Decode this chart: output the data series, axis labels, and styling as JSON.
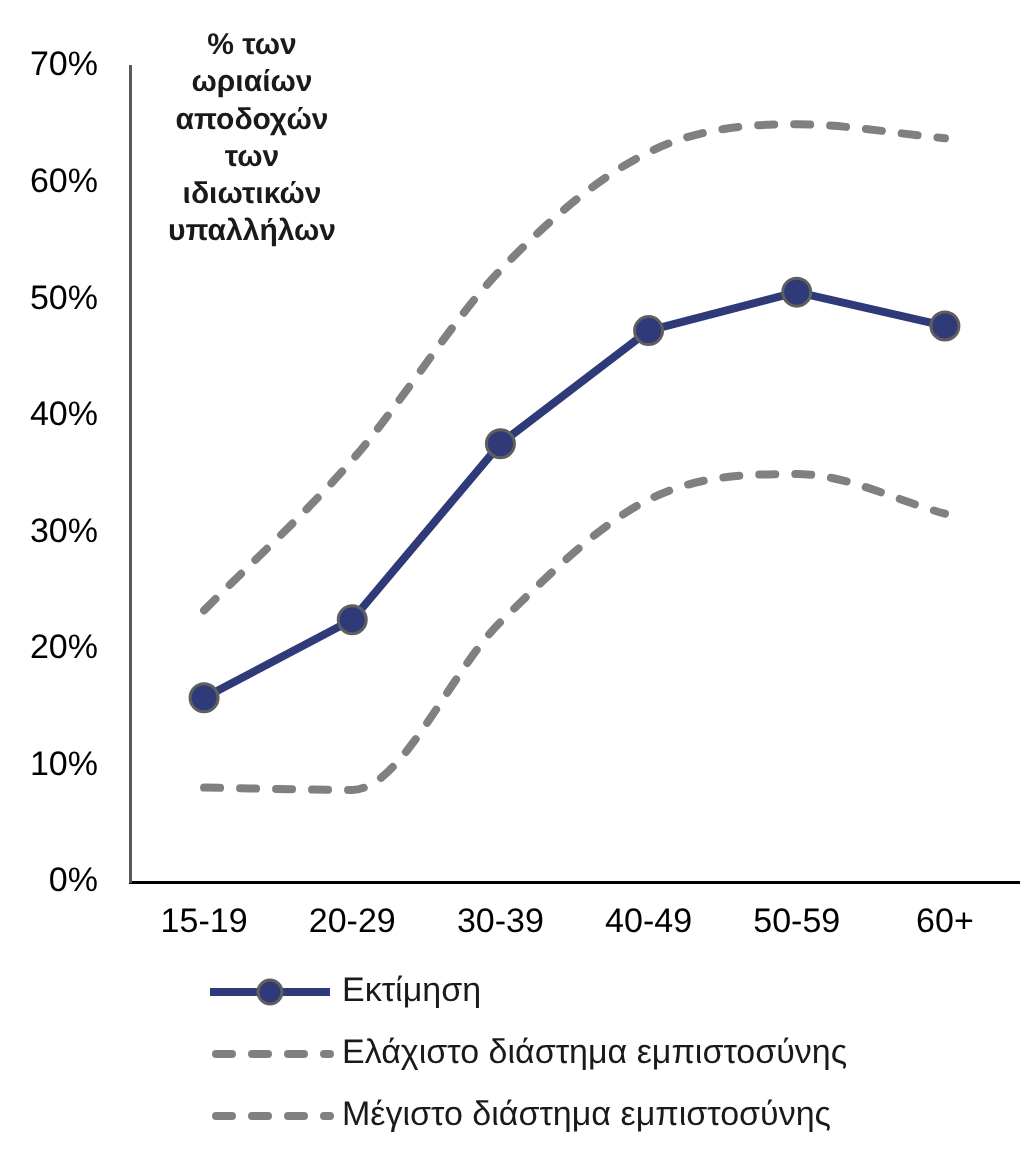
{
  "chart_data": {
    "type": "line",
    "ylabel": "% των ωριαίων αποδοχών των ιδιωτικών υπαλλήλων",
    "categories": [
      "15-19",
      "20-29",
      "30-39",
      "40-49",
      "50-59",
      "60+"
    ],
    "series": [
      {
        "name": "Εκτίμηση",
        "color": "#2f3a78",
        "values": [
          15.8,
          22.5,
          37.6,
          47.3,
          50.6,
          47.7
        ],
        "marker": "circle",
        "line_style": "solid"
      },
      {
        "name": "Ελάχιστο διάστημα εμπιστοσύνης",
        "color": "#808080",
        "values": [
          8.1,
          7.9,
          22.3,
          32.8,
          35.0,
          31.6
        ],
        "marker": "none",
        "line_style": "dashed"
      },
      {
        "name": "Μέγιστο διάστημα εμπιστοσύνης",
        "color": "#808080",
        "values": [
          23.3,
          36.2,
          52.5,
          62.6,
          65.0,
          63.8
        ],
        "marker": "none",
        "line_style": "dashed"
      }
    ],
    "ylim": [
      0,
      70
    ],
    "yticks": [
      {
        "value": 0,
        "label": "0%"
      },
      {
        "value": 10,
        "label": "10%"
      },
      {
        "value": 20,
        "label": "20%"
      },
      {
        "value": 30,
        "label": "30%"
      },
      {
        "value": 40,
        "label": "40%"
      },
      {
        "value": 50,
        "label": "50%"
      },
      {
        "value": 60,
        "label": "60%"
      },
      {
        "value": 70,
        "label": "70%"
      }
    ],
    "legend": "bottom"
  }
}
